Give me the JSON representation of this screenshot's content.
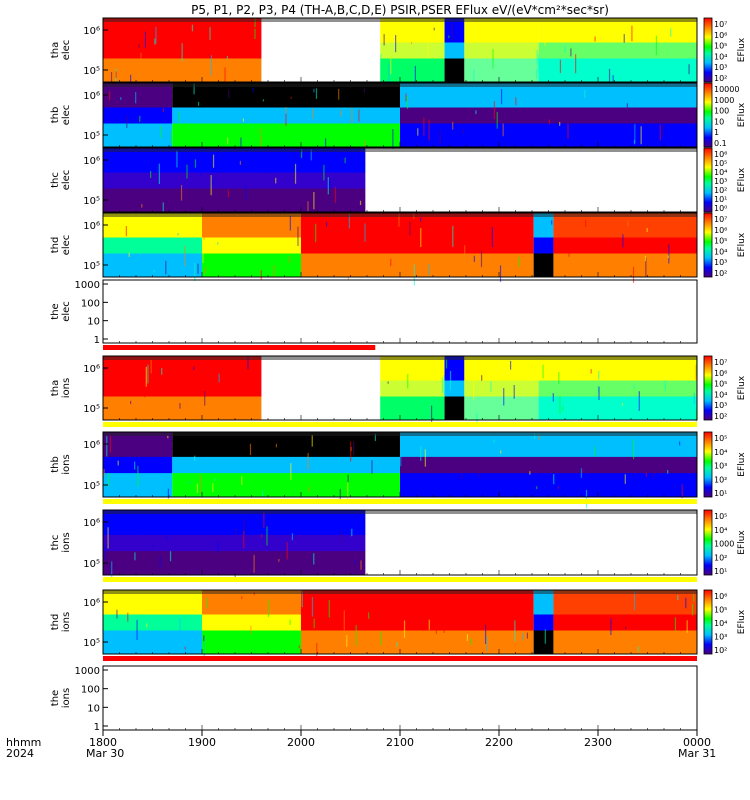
{
  "title": "P5, P1, P2, P3, P4 (TH-A,B,C,D,E) PSIR,PSER EFlux eV/(eV*cm²*sec*sr)",
  "colors": {
    "spectrum": [
      "#4b0082",
      "#0000ff",
      "#00bfff",
      "#00ffcc",
      "#00ff00",
      "#ffff00",
      "#ff8000",
      "#ff0000"
    ],
    "flag_red": "#ff0000",
    "flag_yellow": "#ffff00"
  },
  "time_axis": {
    "range": [
      "1800",
      "0000"
    ],
    "ticks": [
      "1800",
      "1900",
      "2000",
      "2100",
      "2200",
      "2300",
      "0000"
    ],
    "left_labels": [
      "hhmm",
      "2024"
    ],
    "date_left": "Mar 30",
    "date_right": "Mar 31"
  },
  "panels": [
    {
      "id": "tha-elec",
      "ylabel": [
        "tha",
        "elec"
      ],
      "yticks": [
        "10⁶",
        "10⁵"
      ],
      "cbar_ticks": [
        "10⁷",
        "10⁶",
        "10⁵",
        "10⁴",
        "10³",
        "10²"
      ],
      "cbar_label": "EFlux"
    },
    {
      "id": "thb-elec",
      "ylabel": [
        "thb",
        "elec"
      ],
      "yticks": [
        "10⁶",
        "10⁵"
      ],
      "cbar_ticks": [
        "10000",
        "1000",
        "100",
        "10",
        "1",
        "0.1"
      ],
      "cbar_label": "EFlux"
    },
    {
      "id": "thc-elec",
      "ylabel": [
        "thc",
        "elec"
      ],
      "yticks": [
        "10⁶",
        "10⁵"
      ],
      "cbar_ticks": [
        "10⁶",
        "10⁵",
        "10⁴",
        "10³",
        "10²",
        "10¹",
        "10⁰"
      ],
      "cbar_label": "EFlux"
    },
    {
      "id": "thd-elec",
      "ylabel": [
        "thd",
        "elec"
      ],
      "yticks": [
        "10⁶",
        "10⁵"
      ],
      "cbar_ticks": [
        "10⁷",
        "10⁶",
        "10⁵",
        "10⁴",
        "10³",
        "10²"
      ],
      "cbar_label": "EFlux"
    },
    {
      "id": "the-elec",
      "ylabel": [
        "the",
        "elec"
      ],
      "yticks": [
        "1000",
        "100",
        "10",
        "1"
      ],
      "empty": true
    },
    {
      "id": "tha-ions",
      "ylabel": [
        "tha",
        "ions"
      ],
      "yticks": [
        "10⁶",
        "10⁵"
      ],
      "cbar_ticks": [
        "10⁷",
        "10⁶",
        "10⁵",
        "10⁴",
        "10³",
        "10²"
      ],
      "cbar_label": "EFlux"
    },
    {
      "id": "thb-ions",
      "ylabel": [
        "thb",
        "ions"
      ],
      "yticks": [
        "10⁶",
        "10⁵"
      ],
      "cbar_ticks": [
        "10⁵",
        "10⁴",
        "10³",
        "10²",
        "10¹"
      ],
      "cbar_label": "EFlux"
    },
    {
      "id": "thc-ions",
      "ylabel": [
        "thc",
        "ions"
      ],
      "yticks": [
        "10⁶",
        "10⁵"
      ],
      "cbar_ticks": [
        "10⁵",
        "10⁴",
        "1000",
        "10²",
        "10¹"
      ],
      "cbar_label": "EFlux"
    },
    {
      "id": "thd-ions",
      "ylabel": [
        "thd",
        "ions"
      ],
      "yticks": [
        "10⁶",
        "10⁵"
      ],
      "cbar_ticks": [
        "10⁶",
        "10⁵",
        "10⁴",
        "10³",
        "10²"
      ],
      "cbar_label": "EFlux"
    },
    {
      "id": "the-ions",
      "ylabel": [
        "the",
        "ions"
      ],
      "yticks": [
        "1000",
        "100",
        "10",
        "1"
      ],
      "empty": true
    }
  ],
  "chart_data": {
    "type": "heatmap",
    "title": "P5, P1, P2, P3, P4 (TH-A,B,C,D,E) PSIR,PSER EFlux eV/(eV*cm²*sec*sr)",
    "x_range": [
      "1800",
      "0000"
    ],
    "xlabel": "",
    "colorbar_label": "EFlux",
    "series": [
      {
        "name": "tha elec",
        "data_gaps_hhmm": [
          [
            "1940",
            "2050"
          ]
        ],
        "dropout_hhmm": "2130"
      },
      {
        "name": "thb elec",
        "burst_hhmm": [
          "1840",
          "2100"
        ]
      },
      {
        "name": "thc elec",
        "data_end_hhmm": "2050"
      },
      {
        "name": "thd elec",
        "dropout_hhmm": "2225"
      },
      {
        "name": "the elec"
      },
      {
        "name": "tha ions",
        "data_gaps_hhmm": [
          [
            "1940",
            "2050"
          ]
        ],
        "dropout_hhmm": "2130"
      },
      {
        "name": "thb ions",
        "burst_hhmm": [
          "1840",
          "2100"
        ]
      },
      {
        "name": "thc ions",
        "data_end_hhmm": "2050"
      },
      {
        "name": "thd ions",
        "dropout_hhmm": "2225"
      },
      {
        "name": "the ions"
      }
    ]
  }
}
